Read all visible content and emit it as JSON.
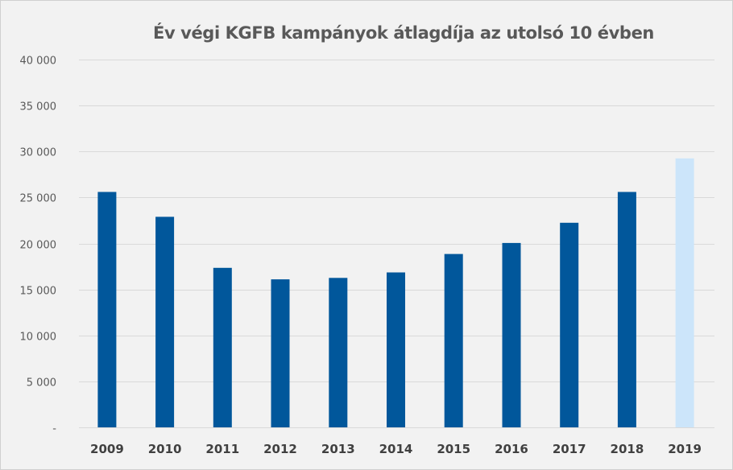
{
  "chart_data": {
    "type": "bar",
    "title": "Év végi KGFB kampányok átlagdíja az utolsó 10 évben",
    "xlabel": "",
    "ylabel": "",
    "ylim": [
      0,
      40000
    ],
    "yticks": [
      0,
      5000,
      10000,
      15000,
      20000,
      25000,
      30000,
      35000,
      40000
    ],
    "ytick_labels": [
      "-",
      "5 000",
      "10 000",
      "15 000",
      "20 000",
      "25 000",
      "30 000",
      "35 000",
      "40 000"
    ],
    "categories": [
      "2009",
      "2010",
      "2011",
      "2012",
      "2013",
      "2014",
      "2015",
      "2016",
      "2017",
      "2018",
      "2019"
    ],
    "values": [
      25600,
      22900,
      17350,
      16100,
      16250,
      16850,
      18850,
      20050,
      22250,
      25600,
      29250
    ],
    "grid": true,
    "colors": {
      "bar": "#01579b",
      "bar_highlight": "#cce5fa",
      "grid": "#d9d9d9"
    },
    "highlight_index": 10
  }
}
